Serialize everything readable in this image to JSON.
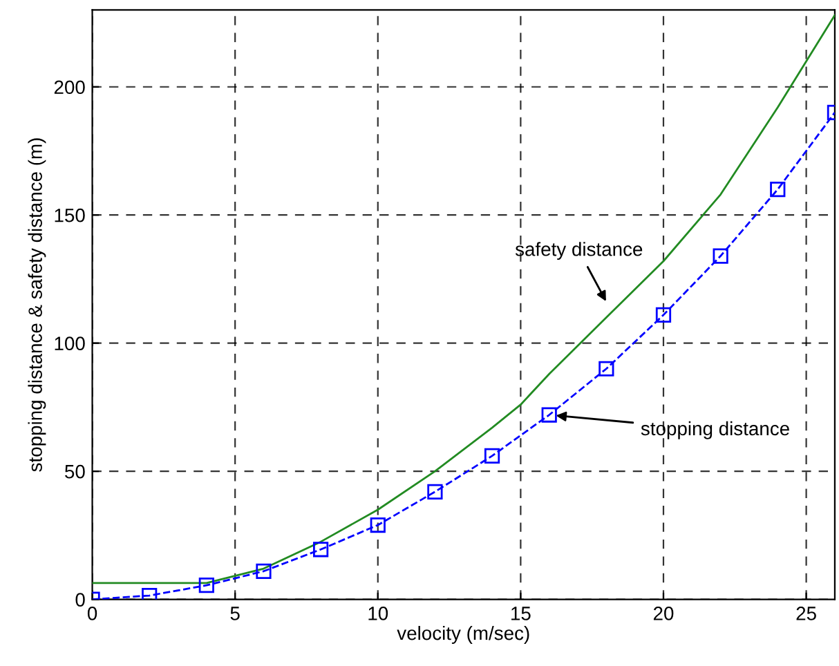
{
  "chart_data": {
    "type": "line",
    "xlabel": "velocity (m/sec)",
    "ylabel": "stopping distance & safety distance (m)",
    "xlim": [
      0,
      26
    ],
    "ylim": [
      0,
      230
    ],
    "xticks": [
      0,
      5,
      10,
      15,
      20,
      25
    ],
    "yticks": [
      0,
      50,
      100,
      150,
      200
    ],
    "grid": true,
    "series": [
      {
        "color": "#228b22",
        "line_style": "solid",
        "marker": "none",
        "x": [
          0,
          2,
          4,
          6,
          8,
          10,
          12,
          14,
          15,
          16,
          18,
          20,
          22,
          24,
          25,
          26
        ],
        "values": [
          6.4,
          6.4,
          6.4,
          12,
          22.5,
          35,
          50,
          67,
          76,
          88,
          110,
          132,
          158,
          192,
          210,
          228
        ]
      },
      {
        "color": "#0000ff",
        "line_style": "dashed",
        "marker": "square",
        "x": [
          0,
          2,
          4,
          6,
          8,
          10,
          12,
          14,
          16,
          18,
          20,
          22,
          24,
          26
        ],
        "values": [
          0,
          1.5,
          5.5,
          11,
          19.5,
          29,
          42,
          56,
          72,
          90,
          111,
          134,
          160,
          190
        ]
      }
    ],
    "annotations": [
      {
        "text": "safety distance",
        "x": 18.1,
        "y": 114
      },
      {
        "text": "stopping distance",
        "x": 16,
        "y": 72
      }
    ]
  }
}
